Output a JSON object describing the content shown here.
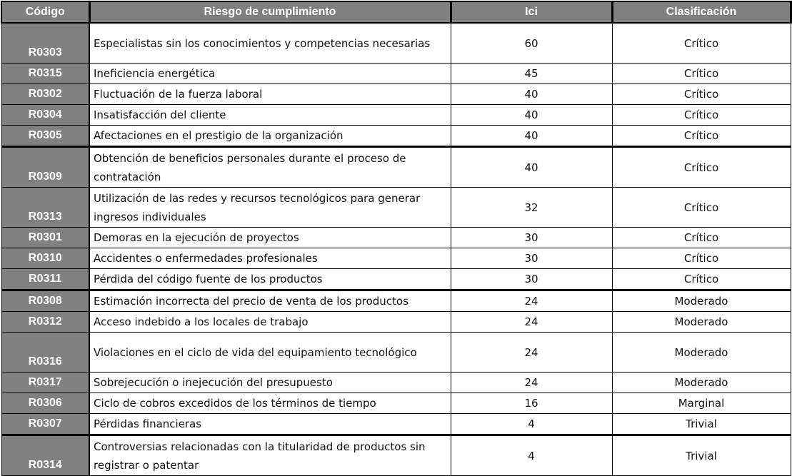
{
  "table": {
    "headers": {
      "code": "Código",
      "risk": "Riesgo de cumplimiento",
      "ici": "Ici",
      "classification": "Clasificación"
    },
    "rows": [
      {
        "code": "R0303",
        "risk": "Especialistas sin los conocimientos y competencias necesarias",
        "ici": "60",
        "classification": "Crítico",
        "lines": 2
      },
      {
        "code": "R0315",
        "risk": "Ineficiencia energética",
        "ici": "45",
        "classification": "Crítico",
        "lines": 1
      },
      {
        "code": "R0302",
        "risk": "Fluctuación de la fuerza laboral",
        "ici": "40",
        "classification": "Crítico",
        "lines": 1
      },
      {
        "code": "R0304",
        "risk": "Insatisfacción del cliente",
        "ici": "40",
        "classification": "Crítico",
        "lines": 1
      },
      {
        "code": "R0305",
        "risk": "Afectaciones en el prestigio de la organización",
        "ici": "40",
        "classification": "Crítico",
        "lines": 1
      },
      {
        "code": "R0309",
        "risk": "Obtención de beneficios personales durante el proceso de contratación",
        "ici": "40",
        "classification": "Crítico",
        "lines": 2
      },
      {
        "code": "R0313",
        "risk": "Utilización de las redes y recursos tecnológicos para generar ingresos individuales",
        "ici": "32",
        "classification": "Crítico",
        "lines": 2
      },
      {
        "code": "R0301",
        "risk": "Demoras en la ejecución de proyectos",
        "ici": "30",
        "classification": "Crítico",
        "lines": 1
      },
      {
        "code": "R0310",
        "risk": "Accidentes o enfermedades profesionales",
        "ici": "30",
        "classification": "Crítico",
        "lines": 1
      },
      {
        "code": "R0311",
        "risk": "Pérdida del código fuente de los productos",
        "ici": "30",
        "classification": "Crítico",
        "lines": 1
      },
      {
        "code": "R0308",
        "risk": "Estimación incorrecta del precio de venta de los productos",
        "ici": "24",
        "classification": "Moderado",
        "lines": 1
      },
      {
        "code": "R0312",
        "risk": "Acceso indebido a los locales de trabajo",
        "ici": "24",
        "classification": "Moderado",
        "lines": 1
      },
      {
        "code": "R0316",
        "risk": "Violaciones en el ciclo de vida del equipamiento tecnológico",
        "ici": "24",
        "classification": "Moderado",
        "lines": 2
      },
      {
        "code": "R0317",
        "risk": "Sobrejecución o inejecución del presupuesto",
        "ici": "24",
        "classification": "Moderado",
        "lines": 1
      },
      {
        "code": "R0306",
        "risk": "Ciclo de cobros excedidos de los términos de tiempo",
        "ici": "16",
        "classification": "Marginal",
        "lines": 1
      },
      {
        "code": "R0307",
        "risk": "Pérdidas financieras",
        "ici": "4",
        "classification": "Trivial",
        "lines": 1
      },
      {
        "code": "R0314",
        "risk": "Controversias relacionadas con la titularidad de productos sin registrar o patentar",
        "ici": "4",
        "classification": "Trivial",
        "lines": 2
      }
    ]
  },
  "colors": {
    "header_bg": "#808080",
    "header_text": "#ffffff",
    "border": "#000000",
    "cell_bg": "#ffffff"
  }
}
